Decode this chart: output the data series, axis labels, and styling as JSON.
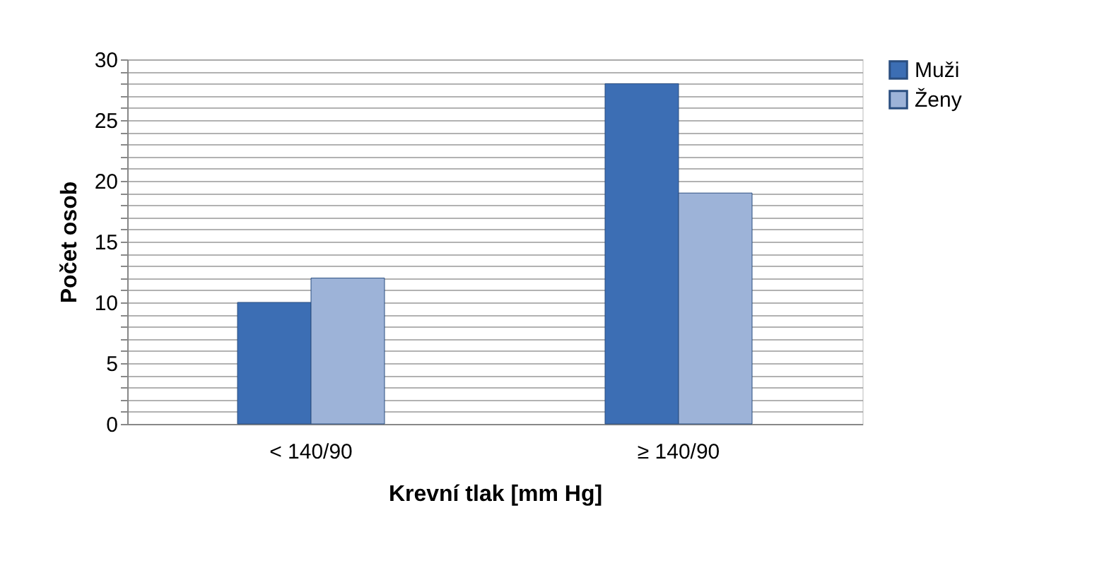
{
  "chart_data": {
    "type": "bar",
    "xlabel": "Krevní tlak [mm Hg]",
    "ylabel": "Počet osob",
    "categories": [
      "< 140/90",
      "≥ 140/90"
    ],
    "series": [
      {
        "name": "Muži",
        "color": "#3c6eb4",
        "values": [
          10,
          28
        ]
      },
      {
        "name": "Ženy",
        "color": "#9db3d8",
        "values": [
          12,
          19
        ]
      }
    ],
    "ylim": [
      0,
      30
    ],
    "yticks": [
      0,
      {
        "value": 1,
        "label": null
      },
      {
        "value": 2,
        "label": null
      },
      {
        "value": 3,
        "label": null
      },
      {
        "value": 4,
        "label": null
      },
      5,
      {
        "value": 6,
        "label": null
      },
      {
        "value": 7,
        "label": null
      },
      {
        "value": 8,
        "label": null
      },
      {
        "value": 9,
        "label": null
      },
      10,
      {
        "value": 11,
        "label": null
      },
      {
        "value": 12,
        "label": null
      },
      {
        "value": 13,
        "label": null
      },
      {
        "value": 14,
        "label": null
      },
      15,
      {
        "value": 16,
        "label": null
      },
      {
        "value": 17,
        "label": null
      },
      {
        "value": 18,
        "label": null
      },
      {
        "value": 19,
        "label": null
      },
      20,
      {
        "value": 21,
        "label": null
      },
      {
        "value": 22,
        "label": null
      },
      {
        "value": 23,
        "label": null
      },
      {
        "value": 24,
        "label": null
      },
      25,
      {
        "value": 26,
        "label": null
      },
      {
        "value": 27,
        "label": null
      },
      {
        "value": 28,
        "label": null
      },
      {
        "value": 29,
        "label": null
      },
      30
    ],
    "grid": "y",
    "legend": "right"
  }
}
